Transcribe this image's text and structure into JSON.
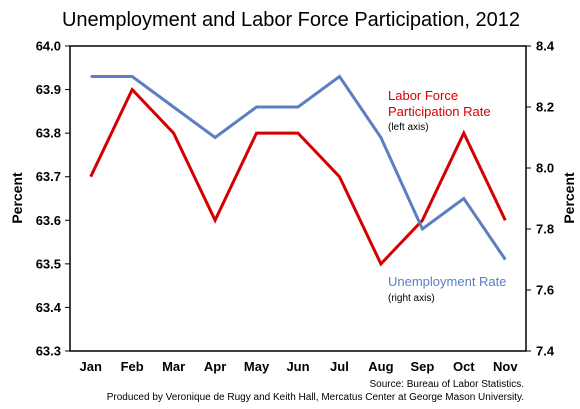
{
  "chart_data": {
    "type": "line",
    "title": "Unemployment and Labor Force Participation, 2012",
    "categories": [
      "Jan",
      "Feb",
      "Mar",
      "Apr",
      "May",
      "Jun",
      "Jul",
      "Aug",
      "Sep",
      "Oct",
      "Nov"
    ],
    "series": [
      {
        "name": "Labor Force Participation Rate",
        "note": "(left axis)",
        "axis": "left",
        "color": "#d40000",
        "values": [
          63.7,
          63.9,
          63.8,
          63.6,
          63.8,
          63.8,
          63.7,
          63.5,
          63.6,
          63.8,
          63.6
        ]
      },
      {
        "name": "Unemployment Rate",
        "note": "(right axis)",
        "axis": "right",
        "color": "#5b7fc0",
        "values": [
          8.3,
          8.3,
          8.2,
          8.1,
          8.2,
          8.2,
          8.3,
          8.1,
          7.8,
          7.9,
          7.7
        ]
      }
    ],
    "left_axis": {
      "label": "Percent",
      "ylim": [
        63.3,
        64.0
      ],
      "ticks": [
        "63.3",
        "63.4",
        "63.5",
        "63.6",
        "63.7",
        "63.8",
        "63.9",
        "64.0"
      ]
    },
    "right_axis": {
      "label": "Percent",
      "ylim": [
        7.4,
        8.4
      ],
      "ticks": [
        "7.4",
        "7.6",
        "7.8",
        "8.0",
        "8.2",
        "8.4"
      ]
    },
    "grid": false,
    "source_lines": [
      "Source: Bureau of Labor Statistics.",
      "Produced by Veronique de Rugy and Keith Hall, Mercatus Center at George Mason University."
    ]
  }
}
